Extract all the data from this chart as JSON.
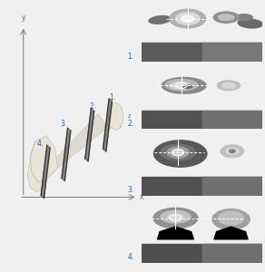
{
  "bg_color": "#f0f0f0",
  "figsize": [
    2.92,
    3.0
  ],
  "dpi": 100,
  "left_panel": {
    "xlim": [
      0,
      10
    ],
    "ylim": [
      0,
      10
    ],
    "bone_fill": "#e8e4d8",
    "bone_edge": "#c8c0b0",
    "shaft_fill": "#dedad0",
    "plane_fill": "#505050",
    "plane_alpha": 0.55,
    "axis_color": "#888888",
    "dash_color": "#aaaaaa",
    "label_color": "#2060b0",
    "axis_label_color": "#666666"
  },
  "right_panels": {
    "labels": [
      "1.",
      "2.",
      "3.",
      "4."
    ],
    "label_color": "#2060b0",
    "bg": "#000000",
    "bed_left": "#666666",
    "bed_right": "#888888"
  }
}
